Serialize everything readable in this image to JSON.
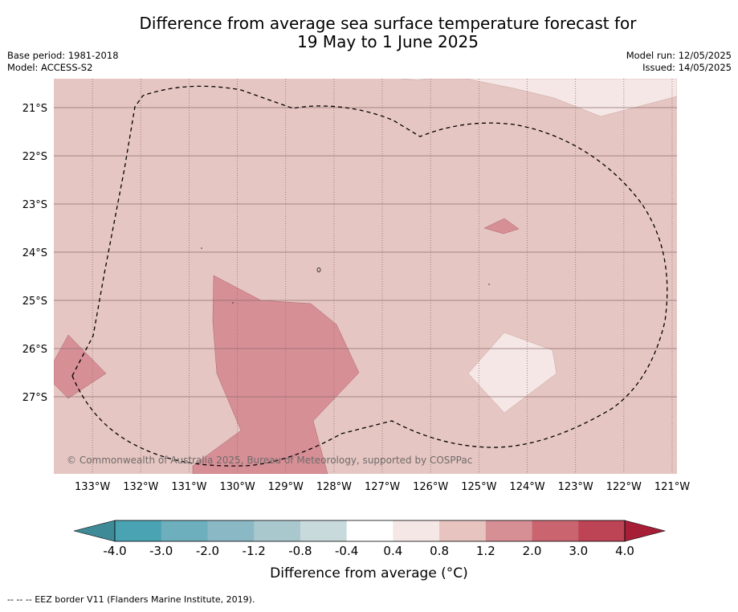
{
  "title": {
    "line1": "Difference from average sea surface temperature forecast for",
    "line2": "19 May to 1 June 2025"
  },
  "meta_left": {
    "base_period": "Base period: 1981-2018",
    "model": "Model: ACCESS-S2"
  },
  "meta_right": {
    "model_run": "Model run: 12/05/2025",
    "issued": "Issued: 14/05/2025"
  },
  "map": {
    "lon_labels": [
      "133°W",
      "132°W",
      "131°W",
      "130°W",
      "129°W",
      "128°W",
      "127°W",
      "126°W",
      "125°W",
      "124°W",
      "123°W",
      "122°W",
      "121°W"
    ],
    "lat_labels": [
      "21°S",
      "22°S",
      "23°S",
      "24°S",
      "25°S",
      "26°S",
      "27°S"
    ],
    "lon_range": [
      -133.8,
      -120.9
    ],
    "lat_range": [
      -28.6,
      -20.4
    ],
    "copyright": "© Commonwealth of Australia 2025, Bureau of Meteorology, supported by COSPPac",
    "background_color": "#e6c6c2",
    "gridline_color": "#8a6e6c",
    "eez_line_color": "#000000"
  },
  "colorbar": {
    "ticks": [
      "-4.0",
      "-3.0",
      "-2.0",
      "-1.2",
      "-0.8",
      "-0.4",
      "0.4",
      "0.8",
      "1.2",
      "2.0",
      "3.0",
      "4.0"
    ],
    "colors": [
      "#4aa3b3",
      "#6eafbd",
      "#8ab8c4",
      "#a8c8cd",
      "#c9dadd",
      "#ffffff",
      "#f5e7e6",
      "#e7c4c0",
      "#d78f96",
      "#ca6570",
      "#bd4455"
    ],
    "under_color": "#3f8a97",
    "over_color": "#a71e37",
    "label": "Difference from average ($^\\circ$C)",
    "label_display": "Difference from average (°C)"
  },
  "footer": "--  --  -- EEZ border V11 (Flanders Marine Institute, 2019)."
}
